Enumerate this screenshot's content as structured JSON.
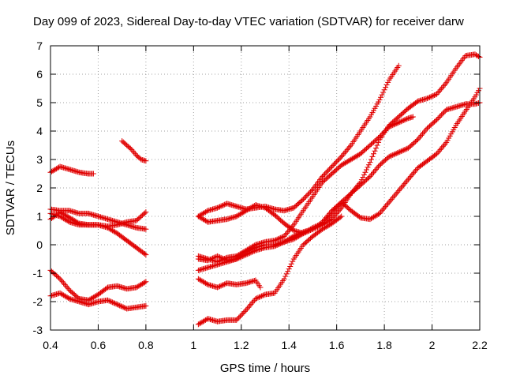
{
  "chart_data": {
    "type": "scatter",
    "title": "Day 099 of 2023, Sidereal Day-to-day VTEC variation (SDTVAR) for receiver darw",
    "xlabel": "GPS time / hours",
    "ylabel": "SDTVAR / TECUs",
    "xlim": [
      0.4,
      2.2
    ],
    "ylim": [
      -3,
      7
    ],
    "xticks": [
      "0.4",
      "0.6",
      "0.8",
      "1",
      "1.2",
      "1.4",
      "1.6",
      "1.8",
      "2",
      "2.2"
    ],
    "yticks": [
      "-3",
      "-2",
      "-1",
      "0",
      "1",
      "2",
      "3",
      "4",
      "5",
      "6",
      "7"
    ],
    "grid": true,
    "marker": "plus",
    "color": "#e00000",
    "series": [
      {
        "points": [
          [
            0.4,
            2.55
          ],
          [
            0.42,
            2.65
          ],
          [
            0.44,
            2.75
          ],
          [
            0.46,
            2.7
          ],
          [
            0.48,
            2.65
          ],
          [
            0.5,
            2.6
          ],
          [
            0.52,
            2.55
          ],
          [
            0.54,
            2.52
          ],
          [
            0.56,
            2.5
          ],
          [
            0.58,
            2.5
          ]
        ]
      },
      {
        "points": [
          [
            0.7,
            3.65
          ],
          [
            0.72,
            3.5
          ],
          [
            0.74,
            3.35
          ],
          [
            0.76,
            3.15
          ],
          [
            0.78,
            3.0
          ],
          [
            0.8,
            2.95
          ]
        ]
      },
      {
        "points": [
          [
            0.4,
            1.25
          ],
          [
            0.44,
            1.2
          ],
          [
            0.48,
            1.2
          ],
          [
            0.52,
            1.1
          ],
          [
            0.56,
            1.1
          ],
          [
            0.6,
            1.0
          ],
          [
            0.64,
            0.9
          ],
          [
            0.68,
            0.8
          ],
          [
            0.72,
            0.7
          ],
          [
            0.76,
            0.6
          ],
          [
            0.8,
            0.55
          ]
        ]
      },
      {
        "points": [
          [
            0.4,
            1.1
          ],
          [
            0.44,
            1.0
          ],
          [
            0.48,
            0.8
          ],
          [
            0.52,
            0.7
          ],
          [
            0.56,
            0.7
          ],
          [
            0.6,
            0.7
          ],
          [
            0.64,
            0.65
          ],
          [
            0.68,
            0.7
          ],
          [
            0.72,
            0.8
          ],
          [
            0.76,
            0.85
          ],
          [
            0.8,
            1.15
          ]
        ]
      },
      {
        "points": [
          [
            0.4,
            0.9
          ],
          [
            0.44,
            1.15
          ],
          [
            0.48,
            0.95
          ],
          [
            0.52,
            0.75
          ],
          [
            0.56,
            0.7
          ],
          [
            0.6,
            0.7
          ],
          [
            0.64,
            0.6
          ],
          [
            0.68,
            0.4
          ],
          [
            0.72,
            0.15
          ],
          [
            0.76,
            -0.1
          ],
          [
            0.8,
            -0.35
          ]
        ]
      },
      {
        "points": [
          [
            0.4,
            -0.9
          ],
          [
            0.44,
            -1.2
          ],
          [
            0.48,
            -1.6
          ],
          [
            0.52,
            -1.9
          ],
          [
            0.56,
            -1.95
          ],
          [
            0.6,
            -1.75
          ],
          [
            0.64,
            -1.5
          ],
          [
            0.68,
            -1.45
          ],
          [
            0.72,
            -1.55
          ],
          [
            0.76,
            -1.5
          ],
          [
            0.8,
            -1.3
          ]
        ]
      },
      {
        "points": [
          [
            0.4,
            -1.8
          ],
          [
            0.44,
            -1.7
          ],
          [
            0.48,
            -1.9
          ],
          [
            0.52,
            -2.0
          ],
          [
            0.56,
            -2.1
          ],
          [
            0.6,
            -2.0
          ],
          [
            0.64,
            -1.95
          ],
          [
            0.68,
            -2.1
          ],
          [
            0.72,
            -2.25
          ],
          [
            0.76,
            -2.2
          ],
          [
            0.8,
            -2.15
          ]
        ]
      },
      {
        "points": [
          [
            1.02,
            1.0
          ],
          [
            1.06,
            1.2
          ],
          [
            1.1,
            1.3
          ],
          [
            1.14,
            1.45
          ],
          [
            1.18,
            1.35
          ],
          [
            1.22,
            1.25
          ],
          [
            1.26,
            1.3
          ],
          [
            1.3,
            1.35
          ],
          [
            1.34,
            1.25
          ],
          [
            1.38,
            1.2
          ],
          [
            1.42,
            1.3
          ],
          [
            1.46,
            1.6
          ],
          [
            1.5,
            1.95
          ],
          [
            1.54,
            2.4
          ],
          [
            1.58,
            2.75
          ],
          [
            1.62,
            3.1
          ],
          [
            1.66,
            3.5
          ],
          [
            1.7,
            4.0
          ],
          [
            1.74,
            4.5
          ],
          [
            1.78,
            5.1
          ],
          [
            1.82,
            5.8
          ],
          [
            1.86,
            6.3
          ]
        ]
      },
      {
        "points": [
          [
            1.02,
            1.0
          ],
          [
            1.06,
            0.8
          ],
          [
            1.1,
            0.85
          ],
          [
            1.14,
            0.9
          ],
          [
            1.18,
            1.0
          ],
          [
            1.22,
            1.2
          ],
          [
            1.26,
            1.4
          ],
          [
            1.3,
            1.3
          ],
          [
            1.34,
            1.05
          ],
          [
            1.38,
            0.75
          ],
          [
            1.42,
            0.5
          ],
          [
            1.46,
            0.4
          ],
          [
            1.5,
            0.55
          ],
          [
            1.54,
            0.8
          ],
          [
            1.58,
            1.2
          ],
          [
            1.62,
            1.5
          ],
          [
            1.66,
            1.2
          ],
          [
            1.7,
            0.95
          ],
          [
            1.74,
            0.9
          ],
          [
            1.78,
            1.1
          ],
          [
            1.82,
            1.5
          ],
          [
            1.86,
            1.9
          ],
          [
            1.9,
            2.3
          ],
          [
            1.94,
            2.7
          ],
          [
            1.98,
            2.95
          ],
          [
            2.02,
            3.2
          ],
          [
            2.06,
            3.6
          ],
          [
            2.1,
            4.2
          ],
          [
            2.14,
            4.7
          ],
          [
            2.18,
            5.2
          ],
          [
            2.2,
            5.5
          ]
        ]
      },
      {
        "points": [
          [
            1.02,
            -0.4
          ],
          [
            1.06,
            -0.5
          ],
          [
            1.1,
            -0.6
          ],
          [
            1.14,
            -0.45
          ],
          [
            1.18,
            -0.4
          ],
          [
            1.22,
            -0.2
          ],
          [
            1.26,
            0.0
          ],
          [
            1.3,
            0.1
          ],
          [
            1.34,
            0.15
          ],
          [
            1.38,
            0.3
          ],
          [
            1.42,
            0.7
          ],
          [
            1.46,
            1.2
          ],
          [
            1.5,
            1.7
          ],
          [
            1.54,
            2.2
          ],
          [
            1.58,
            2.5
          ],
          [
            1.62,
            2.8
          ],
          [
            1.66,
            3.0
          ],
          [
            1.7,
            3.2
          ],
          [
            1.74,
            3.5
          ],
          [
            1.78,
            3.8
          ],
          [
            1.82,
            4.15
          ],
          [
            1.86,
            4.3
          ],
          [
            1.9,
            4.45
          ],
          [
            1.92,
            4.5
          ]
        ]
      },
      {
        "points": [
          [
            1.02,
            -0.9
          ],
          [
            1.06,
            -0.8
          ],
          [
            1.1,
            -0.7
          ],
          [
            1.14,
            -0.6
          ],
          [
            1.18,
            -0.5
          ],
          [
            1.22,
            -0.35
          ],
          [
            1.26,
            -0.2
          ],
          [
            1.3,
            -0.1
          ],
          [
            1.34,
            -0.05
          ],
          [
            1.38,
            0.1
          ],
          [
            1.42,
            0.2
          ],
          [
            1.46,
            0.4
          ],
          [
            1.5,
            0.6
          ],
          [
            1.54,
            0.75
          ],
          [
            1.58,
            1.1
          ],
          [
            1.62,
            1.5
          ],
          [
            1.66,
            1.8
          ],
          [
            1.7,
            2.2
          ],
          [
            1.74,
            2.9
          ],
          [
            1.78,
            3.7
          ],
          [
            1.82,
            4.2
          ],
          [
            1.86,
            4.5
          ],
          [
            1.9,
            4.8
          ],
          [
            1.94,
            5.05
          ],
          [
            1.98,
            5.15
          ],
          [
            2.02,
            5.3
          ],
          [
            2.06,
            5.7
          ],
          [
            2.1,
            6.2
          ],
          [
            2.14,
            6.65
          ],
          [
            2.18,
            6.7
          ],
          [
            2.2,
            6.6
          ]
        ]
      },
      {
        "points": [
          [
            1.02,
            -1.2
          ],
          [
            1.06,
            -1.4
          ],
          [
            1.1,
            -1.5
          ],
          [
            1.14,
            -1.35
          ],
          [
            1.18,
            -1.4
          ],
          [
            1.22,
            -1.35
          ],
          [
            1.26,
            -1.25
          ],
          [
            1.28,
            -1.5
          ]
        ]
      },
      {
        "points": [
          [
            1.02,
            -0.5
          ],
          [
            1.06,
            -0.55
          ],
          [
            1.1,
            -0.4
          ],
          [
            1.14,
            -0.55
          ],
          [
            1.18,
            -0.5
          ],
          [
            1.22,
            -0.25
          ],
          [
            1.26,
            -0.1
          ],
          [
            1.3,
            0.0
          ],
          [
            1.34,
            0.0
          ],
          [
            1.38,
            0.1
          ],
          [
            1.42,
            0.3
          ],
          [
            1.46,
            0.45
          ],
          [
            1.5,
            0.55
          ],
          [
            1.54,
            0.7
          ],
          [
            1.58,
            0.9
          ],
          [
            1.62,
            1.3
          ],
          [
            1.66,
            1.8
          ],
          [
            1.7,
            2.1
          ],
          [
            1.74,
            2.4
          ],
          [
            1.78,
            2.8
          ],
          [
            1.82,
            3.1
          ],
          [
            1.86,
            3.25
          ],
          [
            1.9,
            3.4
          ],
          [
            1.94,
            3.7
          ],
          [
            1.98,
            4.1
          ],
          [
            2.02,
            4.4
          ],
          [
            2.06,
            4.75
          ],
          [
            2.1,
            4.85
          ],
          [
            2.14,
            4.95
          ],
          [
            2.18,
            4.95
          ],
          [
            2.2,
            5.0
          ]
        ]
      },
      {
        "points": [
          [
            1.02,
            -2.8
          ],
          [
            1.06,
            -2.6
          ],
          [
            1.1,
            -2.7
          ],
          [
            1.14,
            -2.65
          ],
          [
            1.18,
            -2.65
          ],
          [
            1.22,
            -2.3
          ],
          [
            1.26,
            -1.9
          ],
          [
            1.3,
            -1.75
          ],
          [
            1.34,
            -1.7
          ],
          [
            1.38,
            -1.2
          ],
          [
            1.42,
            -0.5
          ],
          [
            1.46,
            0.0
          ],
          [
            1.5,
            0.3
          ],
          [
            1.54,
            0.55
          ],
          [
            1.58,
            0.75
          ],
          [
            1.62,
            1.0
          ]
        ]
      }
    ]
  }
}
